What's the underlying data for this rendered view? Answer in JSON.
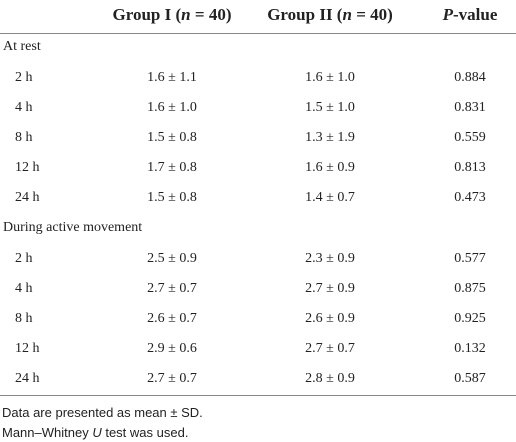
{
  "table": {
    "header": [
      [
        {
          "text": "Group I ("
        },
        {
          "text": "n",
          "italic": true
        },
        {
          "text": " = 40)"
        }
      ],
      [
        {
          "text": "Group II ("
        },
        {
          "text": "n",
          "italic": true
        },
        {
          "text": " = 40)"
        }
      ],
      [
        {
          "text": "P",
          "italic": true
        },
        {
          "text": "-value"
        }
      ]
    ],
    "sections": [
      {
        "title": "At rest",
        "rows": [
          [
            "2 h",
            "1.6 ± 1.1",
            "1.6 ± 1.0",
            "0.884"
          ],
          [
            "4 h",
            "1.6 ± 1.0",
            "1.5 ± 1.0",
            "0.831"
          ],
          [
            "8 h",
            "1.5 ± 0.8",
            "1.3 ± 1.9",
            "0.559"
          ],
          [
            "12 h",
            "1.7 ± 0.8",
            "1.6 ± 0.9",
            "0.813"
          ],
          [
            "24 h",
            "1.5 ± 0.8",
            "1.4 ± 0.7",
            "0.473"
          ]
        ]
      },
      {
        "title": "During active movement",
        "rows": [
          [
            "2 h",
            "2.5 ± 0.9",
            "2.3 ± 0.9",
            "0.577"
          ],
          [
            "4 h",
            "2.7 ± 0.7",
            "2.7 ± 0.9",
            "0.875"
          ],
          [
            "8 h",
            "2.6 ± 0.7",
            "2.6 ± 0.9",
            "0.925"
          ],
          [
            "12 h",
            "2.9 ± 0.6",
            "2.7 ± 0.7",
            "0.132"
          ],
          [
            "24 h",
            "2.7 ± 0.7",
            "2.8 ± 0.9",
            "0.587"
          ]
        ]
      }
    ],
    "notes": [
      [
        {
          "text": "Data are presented as mean ± SD."
        }
      ],
      [
        {
          "text": "Mann–Whitney "
        },
        {
          "text": "U",
          "italic": true
        },
        {
          "text": " test was used."
        }
      ]
    ]
  }
}
